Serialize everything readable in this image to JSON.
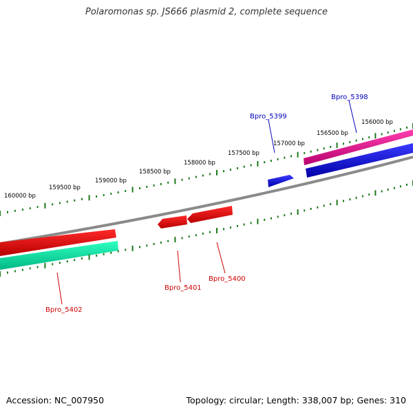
{
  "title": "Polaromonas sp. JS666 plasmid 2, complete sequence",
  "footer": {
    "accession_text": "Accession: NC_007950",
    "summary_text": "Topology: circular; Length: 338,007 bp; Genes: 310"
  },
  "colors": {
    "backbone": "#8a8a8a",
    "tick": "#1a7a1a",
    "forward_label": "#0000bb",
    "reverse_label": "#cc0000"
  },
  "tick_labels": [
    "160000 bp",
    "159500 bp",
    "159000 bp",
    "158500 bp",
    "158000 bp",
    "157500 bp",
    "157000 bp",
    "156500 bp",
    "156000 bp"
  ],
  "genes": [
    {
      "name": "Bpro_5398",
      "strand": "forward",
      "label_color": "#0000bb"
    },
    {
      "name": "Bpro_5399",
      "strand": "forward",
      "label_color": "#0000bb"
    },
    {
      "name": "Bpro_5400",
      "strand": "reverse",
      "label_color": "#cc0000"
    },
    {
      "name": "Bpro_5401",
      "strand": "reverse",
      "label_color": "#cc0000"
    },
    {
      "name": "Bpro_5402",
      "strand": "reverse",
      "label_color": "#cc0000"
    }
  ]
}
